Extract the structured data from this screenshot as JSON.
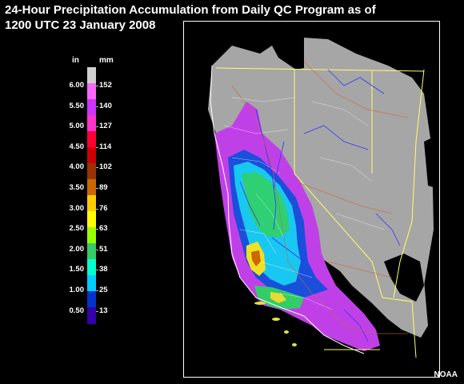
{
  "title": {
    "line1": "24-Hour Precipitation Accumulation from Daily QC Program as of",
    "line2": "1200 UTC 23 January 2008"
  },
  "legend": {
    "unit_in": "in",
    "unit_mm": "mm",
    "inch_labels": [
      "6.00",
      "5.50",
      "5.00",
      "4.50",
      "4.00",
      "3.50",
      "3.00",
      "2.50",
      "2.00",
      "1.50",
      "1.00",
      "0.50"
    ],
    "mm_labels": [
      "152",
      "140",
      "127",
      "114",
      "102",
      "89",
      "76",
      "63",
      "51",
      "38",
      "25",
      "13"
    ],
    "colors": [
      "#d0d0d0",
      "#ff66ff",
      "#cc33ff",
      "#ff33cc",
      "#ff0033",
      "#cc0000",
      "#993300",
      "#cc6600",
      "#ffcc00",
      "#ffff00",
      "#99ff00",
      "#33cc66",
      "#00ffcc",
      "#00ccff",
      "#0033cc",
      "#3300aa"
    ]
  },
  "map": {
    "colors": {
      "land_no_precip": "#a6a6a6",
      "ocean": "#000000",
      "state_boundary": "#ffff66",
      "county_boundary": "#ffffff",
      "rivers": "#3333ff",
      "roads": "#cc6633"
    }
  },
  "credit": "NOAA"
}
